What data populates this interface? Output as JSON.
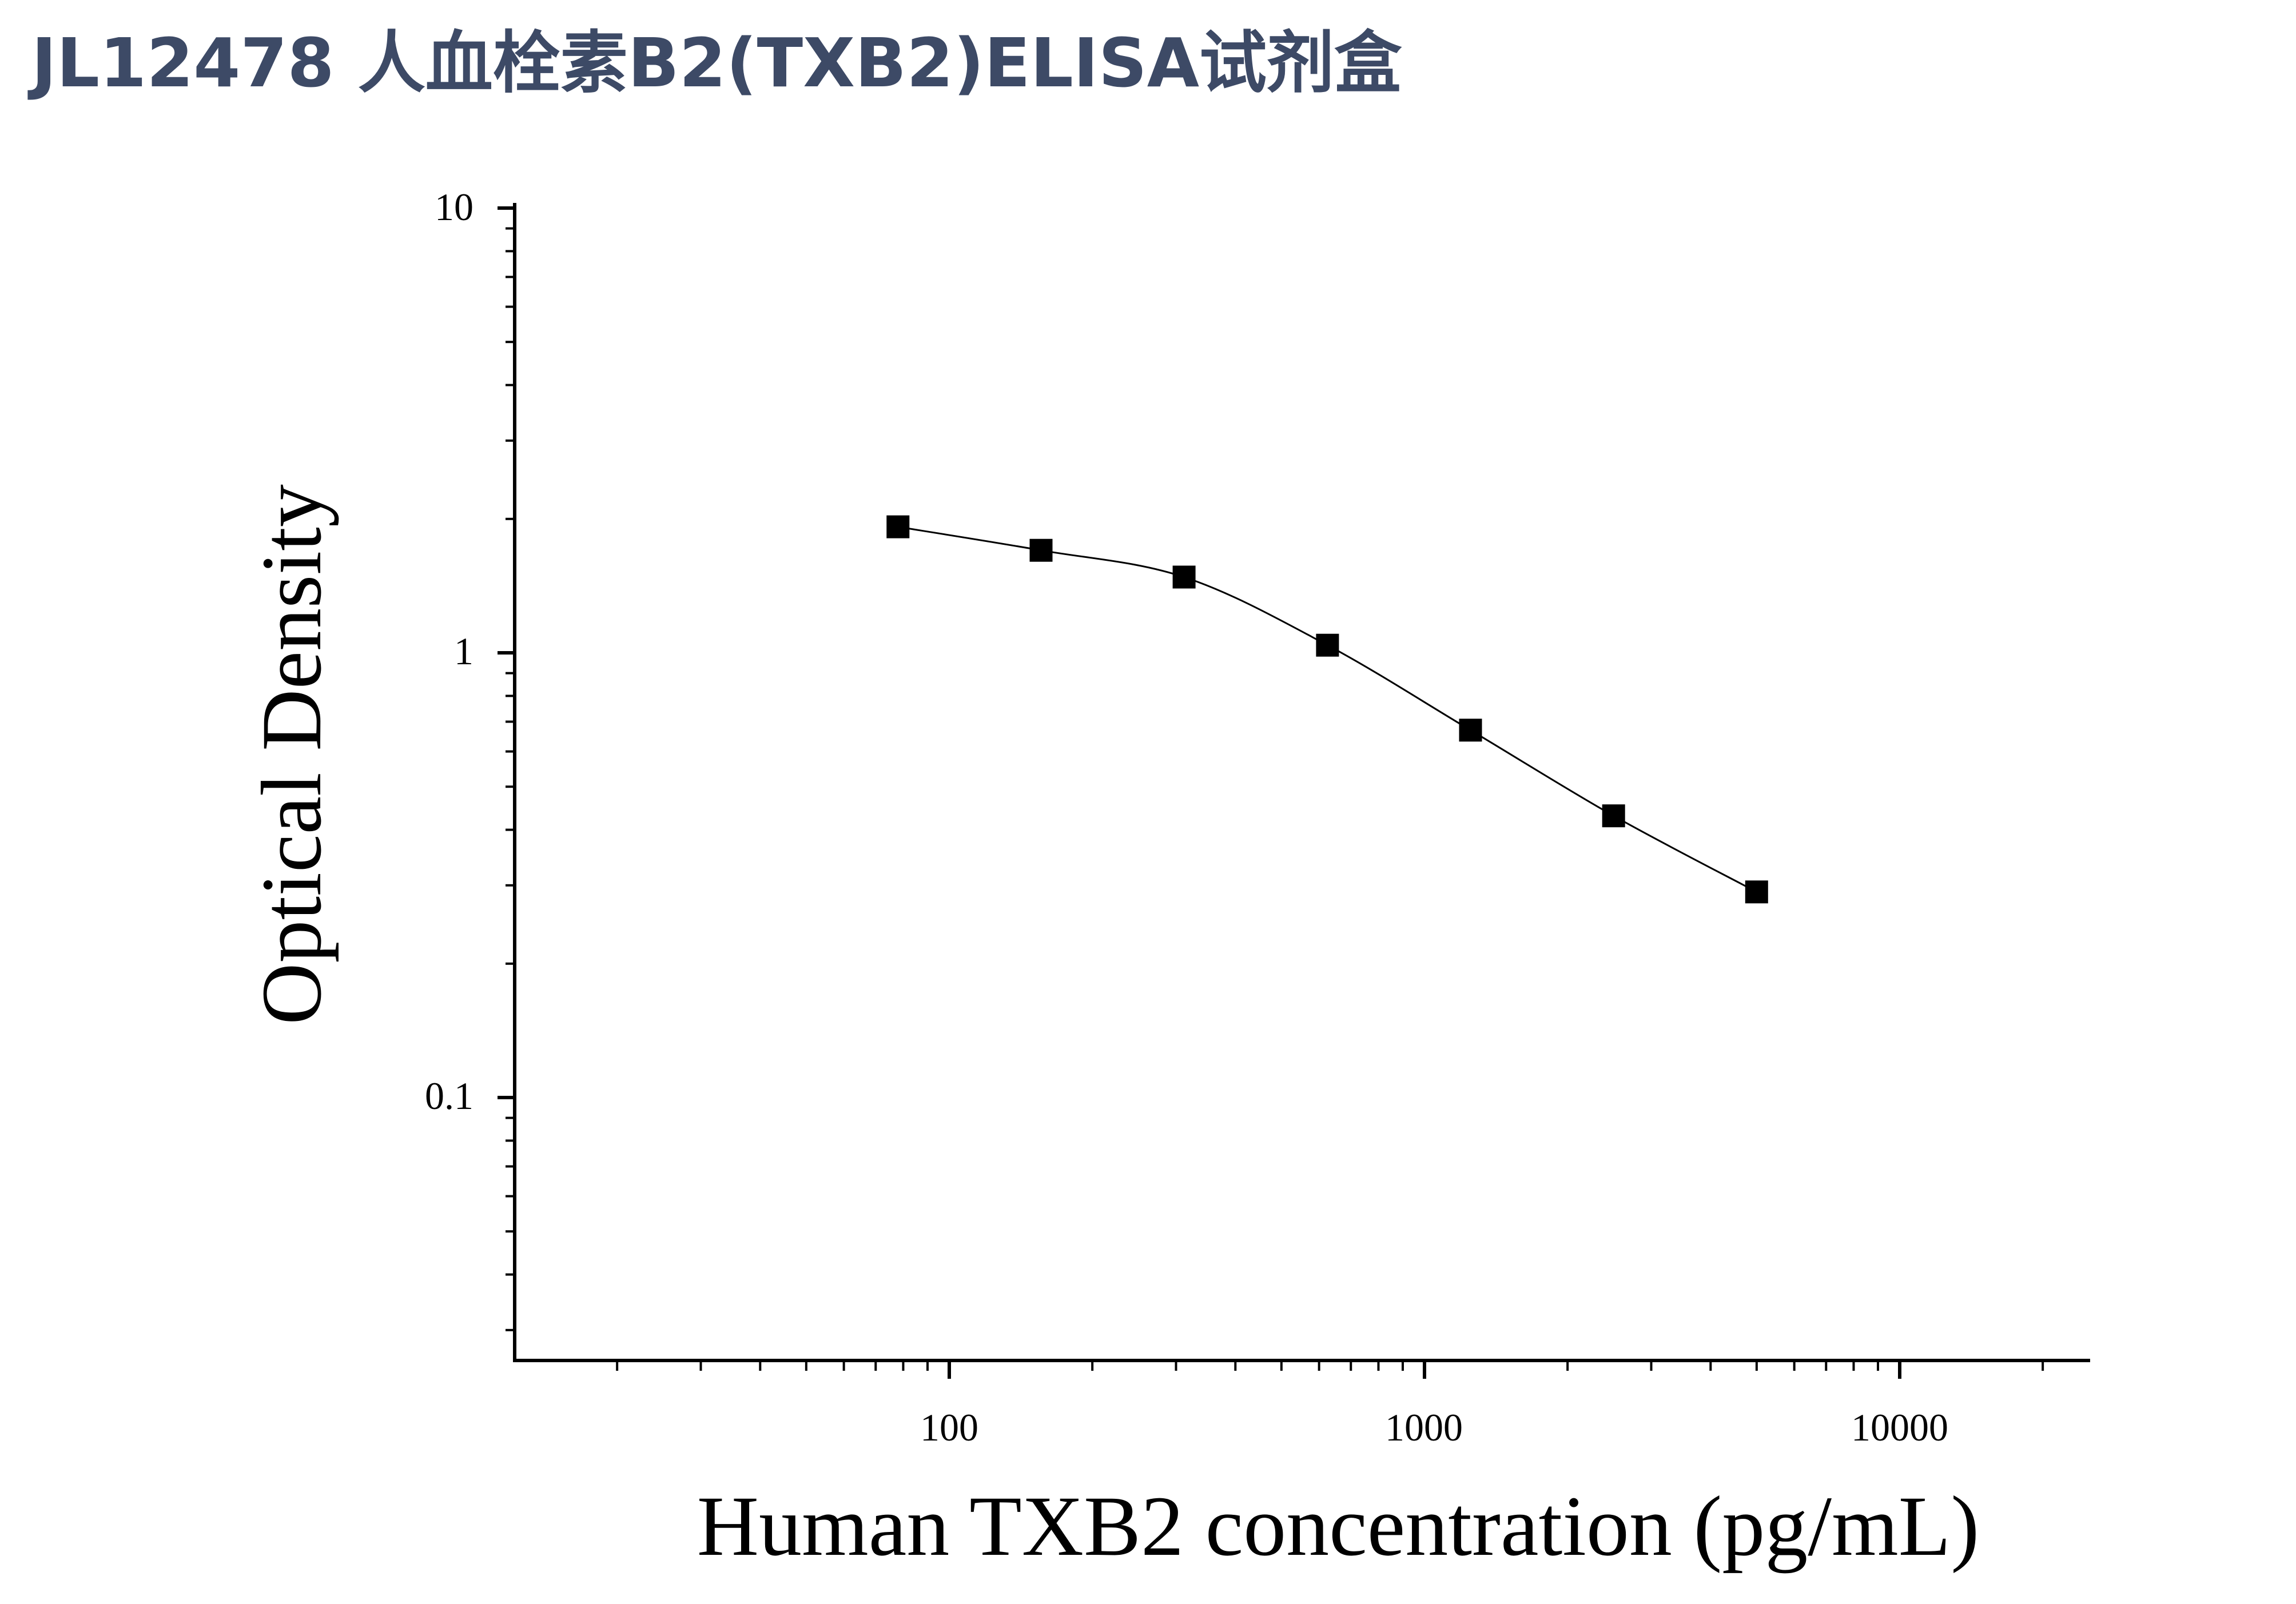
{
  "title": "JL12478 人血栓素B2(TXB2)ELISA试剂盒",
  "chart_data": {
    "type": "scatter",
    "xlabel": "Human TXB2 concentration (pg/mL)",
    "ylabel": "Optical Density",
    "x_scale": "log",
    "y_scale": "log",
    "xlim": [
      10,
      25000
    ],
    "ylim": [
      0.025,
      10
    ],
    "x_ticks": [
      "100",
      "1000",
      "10000"
    ],
    "y_ticks": [
      "0.1",
      "1",
      "10"
    ],
    "x": [
      78,
      156,
      312,
      625,
      1250,
      2500,
      5000
    ],
    "y": [
      1.92,
      1.7,
      1.48,
      1.04,
      0.67,
      0.43,
      0.29
    ],
    "marker": "square",
    "fit_curve": true,
    "grid": false,
    "color": "#000000"
  }
}
